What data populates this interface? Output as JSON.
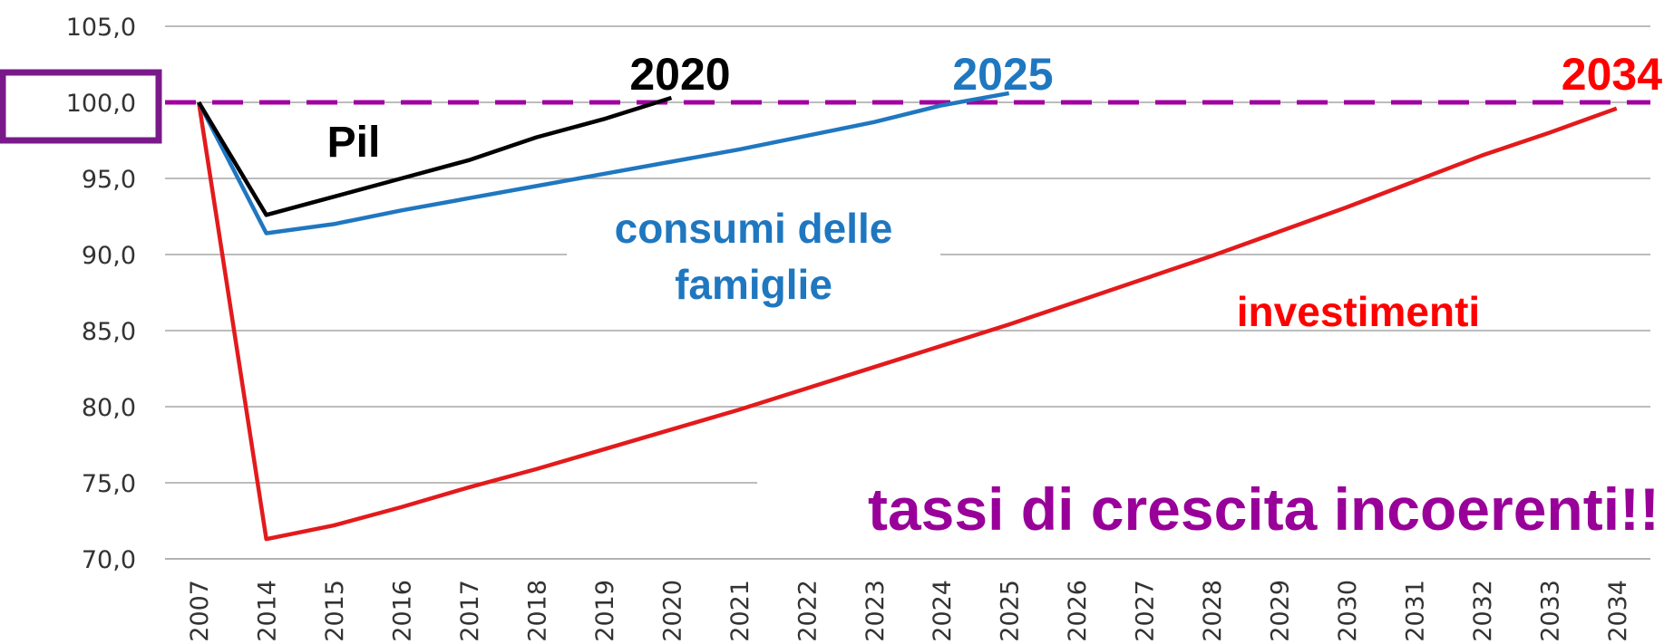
{
  "chart_data": {
    "type": "line",
    "categories": [
      "2007",
      "2014",
      "2015",
      "2016",
      "2017",
      "2018",
      "2019",
      "2020",
      "2021",
      "2022",
      "2023",
      "2024",
      "2025",
      "2026",
      "2027",
      "2028",
      "2029",
      "2030",
      "2031",
      "2032",
      "2033",
      "2034"
    ],
    "series": [
      {
        "name": "Pil",
        "color": "#000000",
        "values": [
          100,
          92.6,
          93.8,
          95.0,
          96.2,
          97.7,
          98.9,
          100.3,
          null,
          null,
          null,
          null,
          null,
          null,
          null,
          null,
          null,
          null,
          null,
          null,
          null,
          null
        ]
      },
      {
        "name": "consumi delle famiglie",
        "color": "#1f77c0",
        "values": [
          100,
          91.4,
          92.0,
          92.9,
          93.7,
          94.5,
          95.3,
          96.1,
          96.9,
          97.8,
          98.7,
          99.8,
          100.6,
          null,
          null,
          null,
          null,
          null,
          null,
          null,
          null,
          null
        ]
      },
      {
        "name": "investimenti",
        "color": "#e31a1c",
        "values": [
          100,
          71.3,
          72.2,
          73.4,
          74.7,
          75.9,
          77.2,
          78.5,
          79.8,
          81.2,
          82.6,
          84.0,
          85.4,
          86.9,
          88.4,
          89.9,
          91.5,
          93.1,
          94.8,
          96.5,
          98.0,
          99.6
        ]
      }
    ],
    "ylim": [
      70,
      105
    ],
    "yticks": [
      {
        "value": 70,
        "label": "70,0"
      },
      {
        "value": 75,
        "label": "75,0"
      },
      {
        "value": 80,
        "label": "80,0"
      },
      {
        "value": 85,
        "label": "85,0"
      },
      {
        "value": 90,
        "label": "90,0"
      },
      {
        "value": 95,
        "label": "95,0"
      },
      {
        "value": 100,
        "label": "100,0"
      },
      {
        "value": 105,
        "label": "105,0"
      }
    ],
    "grid": true,
    "reference_line": {
      "value": 100,
      "color": "#a000a0"
    },
    "annotations": [
      {
        "text": "2020",
        "color": "#000000"
      },
      {
        "text": "2025",
        "color": "#1f77c0"
      },
      {
        "text": "2034",
        "color": "#ff0000"
      },
      {
        "text": "Pil",
        "color": "#000000"
      },
      {
        "text": "consumi delle",
        "color": "#1f77c0"
      },
      {
        "text": "famiglie",
        "color": "#1f77c0"
      },
      {
        "text": "investimenti",
        "color": "#ff0000"
      },
      {
        "text": "tassi di crescita incoerenti!!",
        "color": "#990099"
      }
    ]
  }
}
